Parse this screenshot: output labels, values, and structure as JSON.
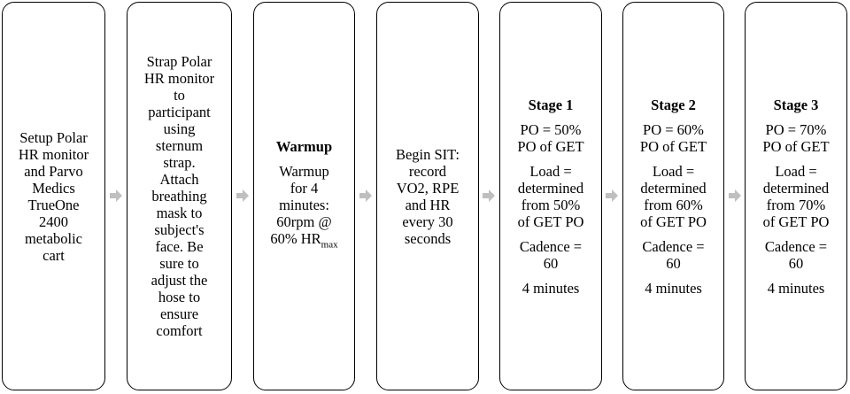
{
  "boxes": [
    {
      "lines": [
        "Setup Polar",
        "HR monitor",
        "and Parvo",
        "Medics",
        "TrueOne",
        "2400",
        "metabolic",
        "cart"
      ]
    },
    {
      "lines": [
        "Strap Polar",
        "HR monitor",
        "to",
        "participant",
        "using",
        "sternum",
        "strap.",
        "Attach",
        "breathing",
        "mask to",
        "subject's",
        "face. Be",
        "sure to",
        "adjust the",
        "hose to",
        "ensure",
        "comfort"
      ]
    },
    {
      "title": "Warmup",
      "lines": [
        "Warmup",
        "for 4",
        "minutes:",
        "60rpm @"
      ],
      "last_line_main": "60% HR",
      "last_line_sub": "max"
    },
    {
      "lines": [
        "Begin SIT:",
        "record",
        "VO2, RPE",
        "and HR",
        "every 30",
        "seconds"
      ]
    },
    {
      "title": "Stage 1",
      "po": [
        "PO = 50%",
        "PO of GET"
      ],
      "load": [
        "Load =",
        "determined",
        "from 50%",
        "of GET PO"
      ],
      "cadence": [
        "Cadence =",
        "60"
      ],
      "duration": "4 minutes"
    },
    {
      "title": "Stage 2",
      "po": [
        "PO = 60%",
        "PO of GET"
      ],
      "load": [
        "Load =",
        "determined",
        "from 60%",
        "of GET PO"
      ],
      "cadence": [
        "Cadence =",
        "60"
      ],
      "duration": "4 minutes"
    },
    {
      "title": "Stage 3",
      "po": [
        "PO = 70%",
        "PO of GET"
      ],
      "load": [
        "Load =",
        "determined",
        "from 70%",
        "of GET PO"
      ],
      "cadence": [
        "Cadence =",
        "60"
      ],
      "duration": "4 minutes"
    }
  ],
  "colors": {
    "border": "#000000",
    "arrow": "#bfbfbf",
    "text": "#000000"
  }
}
